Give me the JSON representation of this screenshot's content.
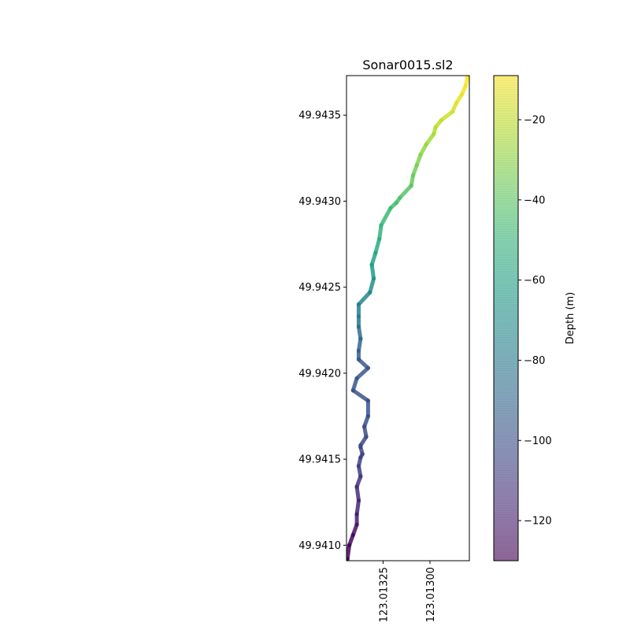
{
  "chart_data": {
    "type": "scatter",
    "title": "Sonar0015.sl2",
    "xlabel": "",
    "ylabel": "",
    "x_axis_inverted": true,
    "xlim": [
      123.013445,
      123.01279
    ],
    "ylim": [
      49.94091,
      49.94373
    ],
    "x_ticks": [
      123.01325,
      123.013
    ],
    "x_tick_labels": [
      "123.01325",
      "123.01300"
    ],
    "y_ticks": [
      49.941,
      49.9415,
      49.942,
      49.9425,
      49.943,
      49.9435
    ],
    "y_tick_labels": [
      "49.9410",
      "49.9415",
      "49.9420",
      "49.9425",
      "49.9430",
      "49.9435"
    ],
    "colorbar": {
      "label": "Depth (m)",
      "range": [
        -130,
        -9
      ],
      "ticks": [
        -20,
        -40,
        -60,
        -80,
        -100,
        -120
      ],
      "tick_labels": [
        "−20",
        "−40",
        "−60",
        "−80",
        "−100",
        "−120"
      ],
      "colormap": "viridis",
      "alpha": 0.6
    },
    "colormap_stops": [
      "#440154",
      "#482878",
      "#3e4989",
      "#31688e",
      "#26828e",
      "#1f9e89",
      "#35b779",
      "#6ece58",
      "#b5de2b",
      "#fde725"
    ],
    "track": {
      "x": [
        123.01344,
        123.01343,
        123.01341,
        123.01339,
        123.01339,
        123.01338,
        123.01339,
        123.01337,
        123.01338,
        123.01337,
        123.01336,
        123.01337,
        123.01337,
        123.01334,
        123.01335,
        123.01333,
        123.01333,
        123.01341,
        123.01339,
        123.01333,
        123.01338,
        123.01338,
        123.01337,
        123.01338,
        123.01338,
        123.01338,
        123.01332,
        123.0133,
        123.01331,
        123.01329,
        123.01327,
        123.01326,
        123.01321,
        123.01318,
        123.01316,
        123.0131,
        123.01309,
        123.01307,
        123.01305,
        123.01302,
        123.01298,
        123.01297,
        123.01294,
        123.01288,
        123.01286,
        123.01283,
        123.01281,
        123.0128
      ],
      "y": [
        49.94092,
        49.941,
        49.94106,
        49.94112,
        49.94118,
        49.94126,
        49.94134,
        49.9414,
        49.94146,
        49.94151,
        49.94153,
        49.94157,
        49.94158,
        49.94163,
        49.94169,
        49.94175,
        49.94184,
        49.9419,
        49.94197,
        49.94203,
        49.94208,
        49.94213,
        49.9422,
        49.94227,
        49.94233,
        49.9424,
        49.94247,
        49.94255,
        49.94263,
        49.9427,
        49.94278,
        49.94286,
        49.94296,
        49.94299,
        49.94302,
        49.94309,
        49.94315,
        49.94321,
        49.94327,
        49.94333,
        49.94339,
        49.94343,
        49.94347,
        49.94352,
        49.94357,
        49.94362,
        49.94367,
        49.94372
      ],
      "depth": [
        -130,
        -128,
        -126,
        -122,
        -119,
        -116,
        -113,
        -110,
        -107,
        -105,
        -104,
        -103,
        -103,
        -102,
        -101,
        -100,
        -99,
        -98,
        -97,
        -96,
        -95,
        -92,
        -88,
        -84,
        -80,
        -76,
        -72,
        -67,
        -62,
        -58,
        -54,
        -50,
        -47,
        -45,
        -43,
        -40,
        -37,
        -34,
        -31,
        -28,
        -25,
        -22,
        -20,
        -17,
        -15,
        -13,
        -11,
        -9
      ]
    }
  }
}
